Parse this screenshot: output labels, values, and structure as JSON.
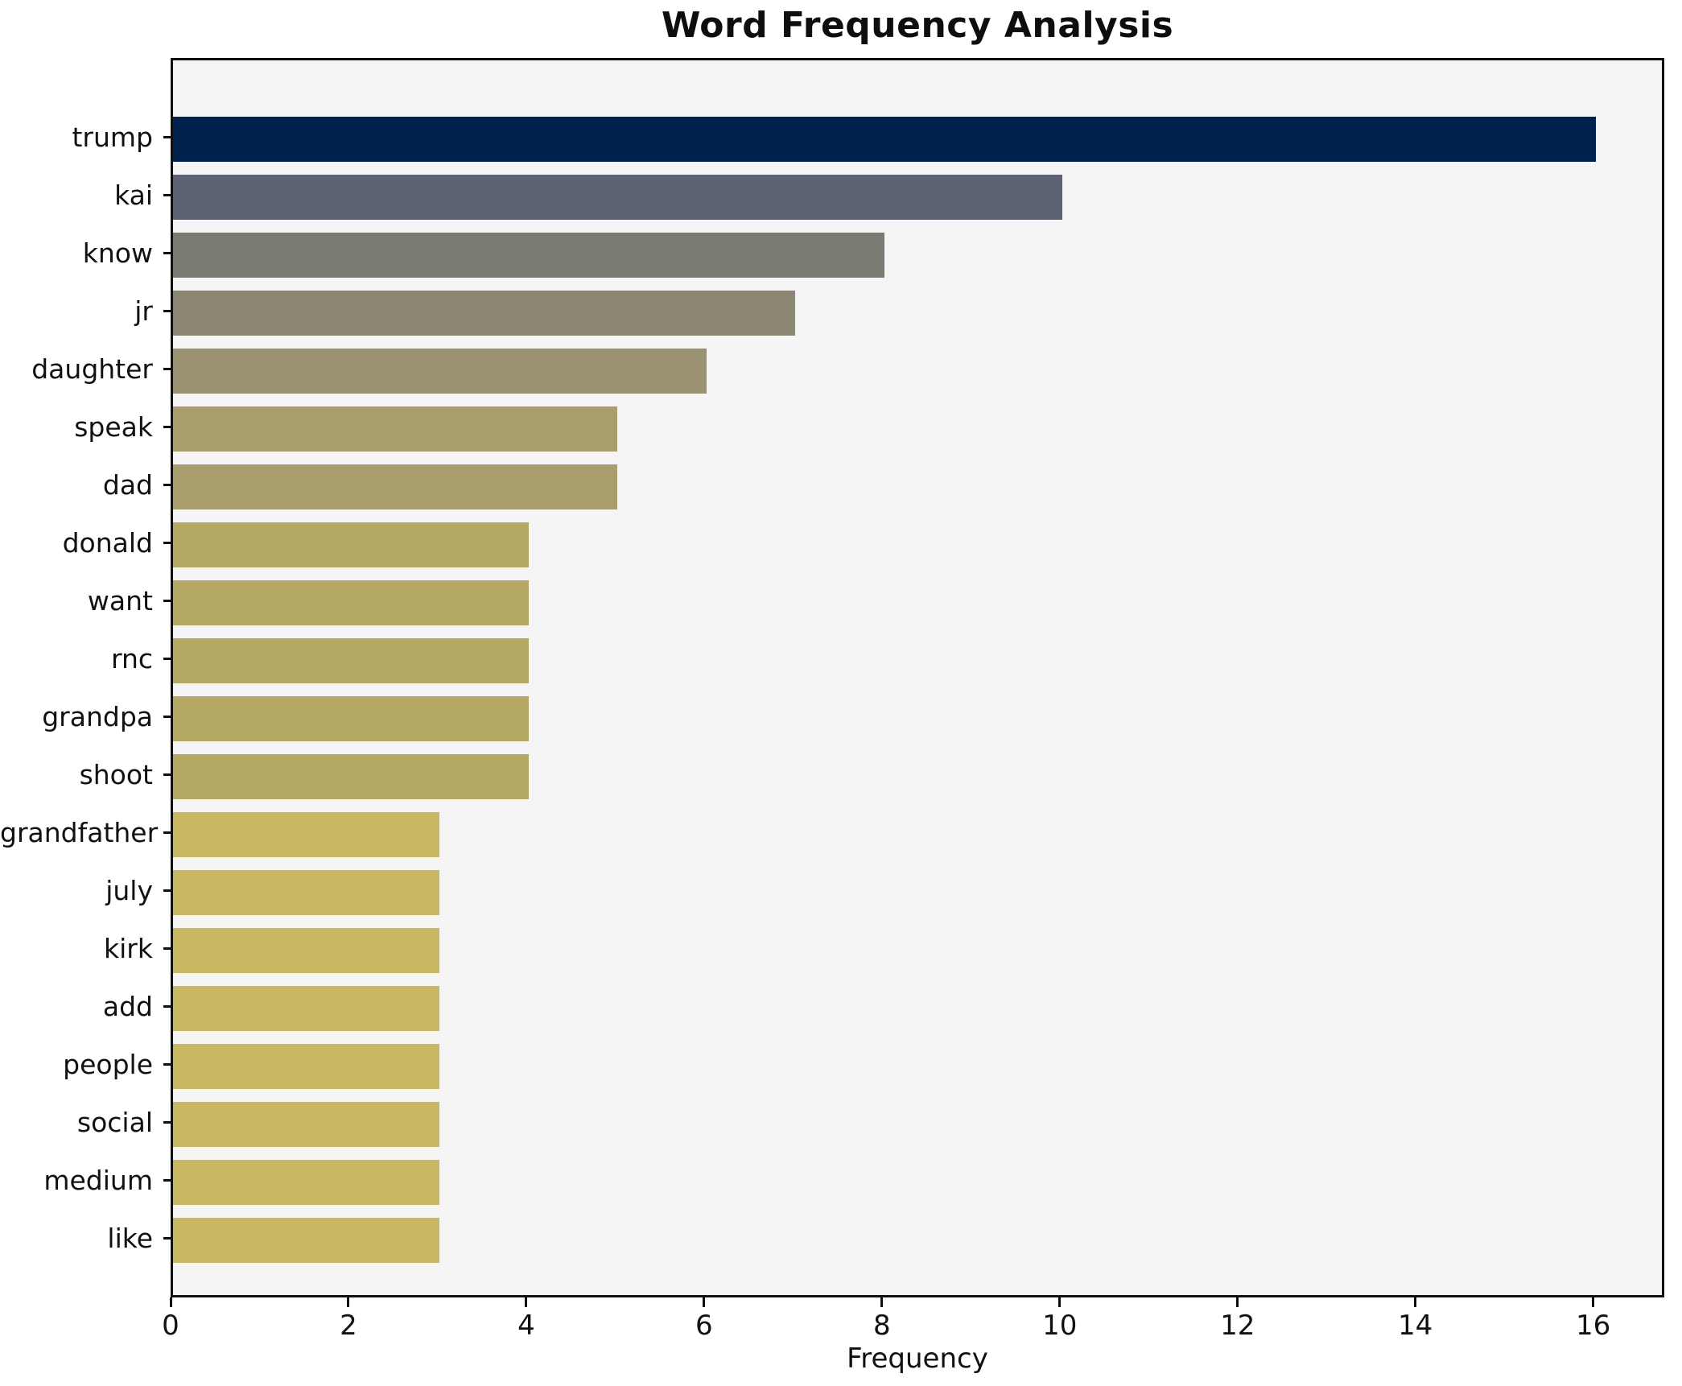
{
  "title": "Word Frequency Analysis",
  "chart_data": {
    "type": "bar",
    "orientation": "horizontal",
    "title": "Word Frequency Analysis",
    "xlabel": "Frequency",
    "ylabel": "",
    "categories": [
      "trump",
      "kai",
      "know",
      "jr",
      "daughter",
      "speak",
      "dad",
      "donald",
      "want",
      "rnc",
      "grandpa",
      "shoot",
      "grandfather",
      "july",
      "kirk",
      "add",
      "people",
      "social",
      "medium",
      "like"
    ],
    "values": [
      16,
      10,
      8,
      7,
      6,
      5,
      5,
      4,
      4,
      4,
      4,
      4,
      3,
      3,
      3,
      3,
      3,
      3,
      3,
      3
    ],
    "bar_colors": [
      "#01214d",
      "#5c6271",
      "#7b7a73",
      "#8b8772",
      "#9b9272",
      "#a99f6e",
      "#a99f6e",
      "#b5a963",
      "#b5a963",
      "#b5a963",
      "#b5a963",
      "#b5a963",
      "#c9b862",
      "#c9b862",
      "#c9b862",
      "#c9b862",
      "#c9b862",
      "#c9b862",
      "#c9b862",
      "#c9b862"
    ],
    "xlim": [
      0,
      16.8
    ],
    "xticks": [
      0,
      2,
      4,
      6,
      8,
      10,
      12,
      14,
      16
    ],
    "grid": false,
    "legend": false,
    "plot_background": "#f5f5f6",
    "figure_background": "#ffffff",
    "spine_color": "#0f0f0f"
  }
}
